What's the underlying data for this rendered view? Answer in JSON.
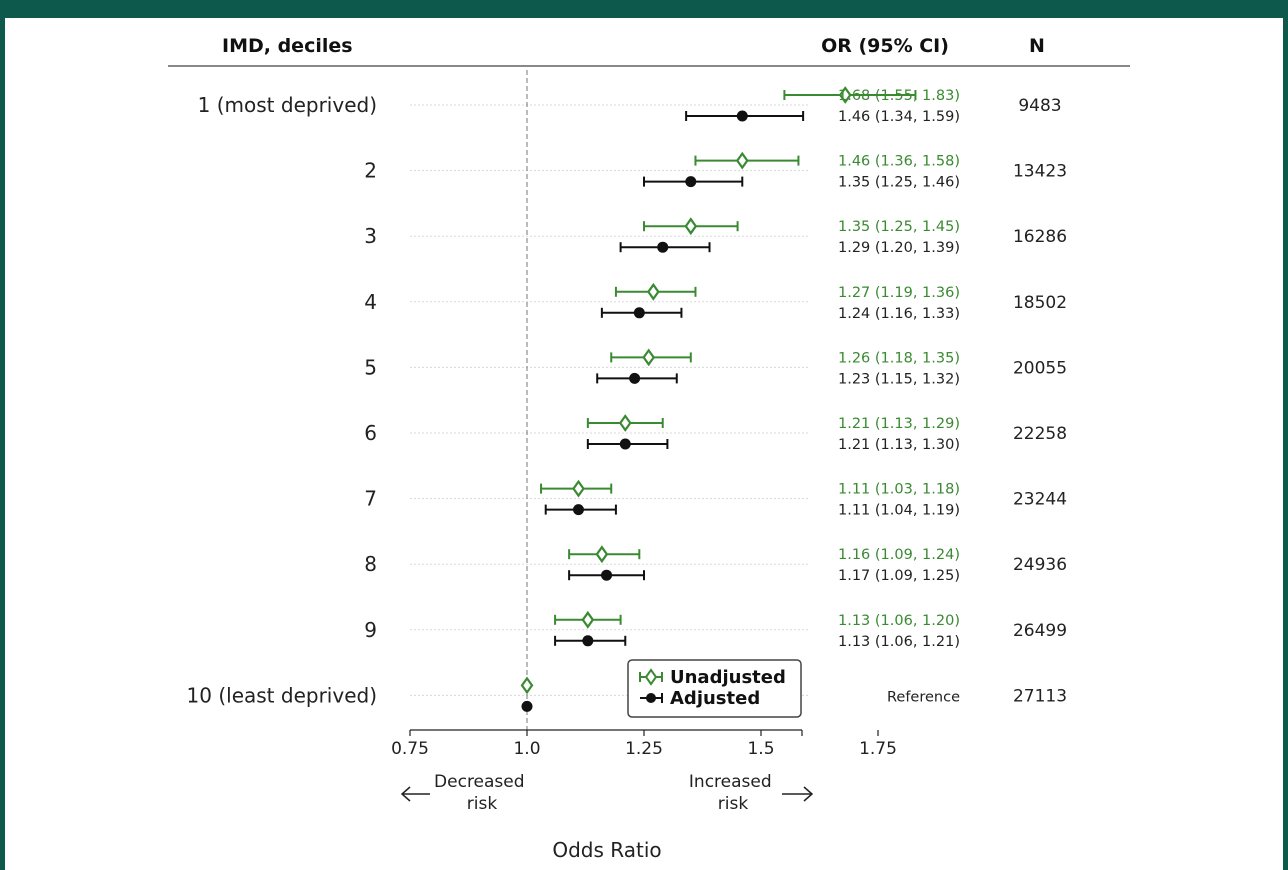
{
  "header": {
    "label_col": "IMD, deciles",
    "ci_col": "OR (95% CI)",
    "n_col": "N"
  },
  "colors": {
    "unadjusted": "#3a8a32",
    "adjusted": "#111111",
    "frame": "#0d5a4c"
  },
  "chart_data": {
    "type": "forest",
    "xlabel": "Odds Ratio",
    "xlim": [
      0.75,
      1.95
    ],
    "xticks": [
      0.75,
      1.0,
      1.25,
      1.5,
      1.75
    ],
    "xtick_labels": [
      "0.75",
      "1.0",
      "1.25",
      "1.5",
      "1.75"
    ],
    "reference_line": 1.0,
    "direction_left": "Decreased\nrisk",
    "direction_right": "Increased\nrisk",
    "legend": {
      "position": "lower-right",
      "entries": [
        "Unadjusted",
        "Adjusted"
      ]
    },
    "rows": [
      {
        "label": "1 (most deprived)",
        "n": "9483",
        "unadj": {
          "or": 1.68,
          "lo": 1.55,
          "hi": 1.83,
          "text": "1.68 (1.55, 1.83)"
        },
        "adj": {
          "or": 1.46,
          "lo": 1.34,
          "hi": 1.59,
          "text": "1.46 (1.34, 1.59)"
        }
      },
      {
        "label": "2",
        "n": "13423",
        "unadj": {
          "or": 1.46,
          "lo": 1.36,
          "hi": 1.58,
          "text": "1.46 (1.36, 1.58)"
        },
        "adj": {
          "or": 1.35,
          "lo": 1.25,
          "hi": 1.46,
          "text": "1.35 (1.25, 1.46)"
        }
      },
      {
        "label": "3",
        "n": "16286",
        "unadj": {
          "or": 1.35,
          "lo": 1.25,
          "hi": 1.45,
          "text": "1.35 (1.25, 1.45)"
        },
        "adj": {
          "or": 1.29,
          "lo": 1.2,
          "hi": 1.39,
          "text": "1.29 (1.20, 1.39)"
        }
      },
      {
        "label": "4",
        "n": "18502",
        "unadj": {
          "or": 1.27,
          "lo": 1.19,
          "hi": 1.36,
          "text": "1.27 (1.19, 1.36)"
        },
        "adj": {
          "or": 1.24,
          "lo": 1.16,
          "hi": 1.33,
          "text": "1.24 (1.16, 1.33)"
        }
      },
      {
        "label": "5",
        "n": "20055",
        "unadj": {
          "or": 1.26,
          "lo": 1.18,
          "hi": 1.35,
          "text": "1.26 (1.18, 1.35)"
        },
        "adj": {
          "or": 1.23,
          "lo": 1.15,
          "hi": 1.32,
          "text": "1.23 (1.15, 1.32)"
        }
      },
      {
        "label": "6",
        "n": "22258",
        "unadj": {
          "or": 1.21,
          "lo": 1.13,
          "hi": 1.29,
          "text": "1.21 (1.13, 1.29)"
        },
        "adj": {
          "or": 1.21,
          "lo": 1.13,
          "hi": 1.3,
          "text": "1.21 (1.13, 1.30)"
        }
      },
      {
        "label": "7",
        "n": "23244",
        "unadj": {
          "or": 1.11,
          "lo": 1.03,
          "hi": 1.18,
          "text": "1.11 (1.03, 1.18)"
        },
        "adj": {
          "or": 1.11,
          "lo": 1.04,
          "hi": 1.19,
          "text": "1.11 (1.04, 1.19)"
        }
      },
      {
        "label": "8",
        "n": "24936",
        "unadj": {
          "or": 1.16,
          "lo": 1.09,
          "hi": 1.24,
          "text": "1.16 (1.09, 1.24)"
        },
        "adj": {
          "or": 1.17,
          "lo": 1.09,
          "hi": 1.25,
          "text": "1.17 (1.09, 1.25)"
        }
      },
      {
        "label": "9",
        "n": "26499",
        "unadj": {
          "or": 1.13,
          "lo": 1.06,
          "hi": 1.2,
          "text": "1.13 (1.06, 1.20)"
        },
        "adj": {
          "or": 1.13,
          "lo": 1.06,
          "hi": 1.21,
          "text": "1.13 (1.06, 1.21)"
        }
      },
      {
        "label": "10 (least deprived)",
        "n": "27113",
        "reference_text": "Reference",
        "unadj": {
          "or": 1.0
        },
        "adj": {
          "or": 1.0
        }
      }
    ]
  }
}
